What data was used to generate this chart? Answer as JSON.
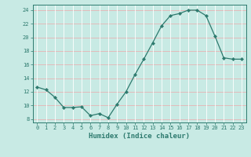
{
  "x": [
    0,
    1,
    2,
    3,
    4,
    5,
    6,
    7,
    8,
    9,
    10,
    11,
    12,
    13,
    14,
    15,
    16,
    17,
    18,
    19,
    20,
    21,
    22,
    23
  ],
  "y": [
    12.7,
    12.3,
    11.2,
    9.7,
    9.7,
    9.8,
    8.5,
    8.8,
    8.2,
    10.2,
    12.0,
    14.5,
    16.8,
    19.2,
    21.7,
    23.2,
    23.5,
    24.0,
    24.0,
    23.2,
    20.2,
    17.0,
    16.8,
    16.8
  ],
  "line_color": "#2d7a6e",
  "marker": "D",
  "marker_size": 2.2,
  "bg_color": "#c8eae4",
  "grid_color_v": "#ffffff",
  "grid_color_h": "#e8b4b4",
  "xlabel": "Humidex (Indice chaleur)",
  "ylabel_ticks": [
    8,
    10,
    12,
    14,
    16,
    18,
    20,
    22,
    24
  ],
  "xlim": [
    -0.5,
    23.5
  ],
  "ylim": [
    7.5,
    24.8
  ],
  "xticks": [
    0,
    1,
    2,
    3,
    4,
    5,
    6,
    7,
    8,
    9,
    10,
    11,
    12,
    13,
    14,
    15,
    16,
    17,
    18,
    19,
    20,
    21,
    22,
    23
  ],
  "axis_color": "#2d7a6e",
  "spine_color": "#2d7a6e",
  "font_family": "monospace",
  "tick_fontsize": 5.0,
  "xlabel_fontsize": 6.5
}
